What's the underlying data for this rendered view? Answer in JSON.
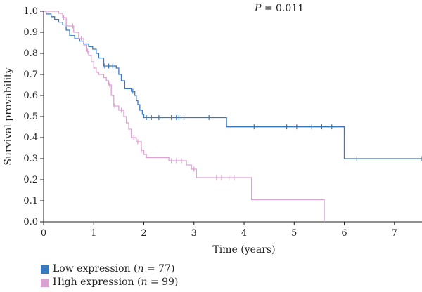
{
  "chart_data": {
    "type": "line",
    "title": "",
    "xlabel": "Time (years)",
    "ylabel": "Survival provability",
    "xlim": [
      0,
      7.55
    ],
    "ylim": [
      0,
      1.0
    ],
    "x_ticks": [
      0,
      1,
      2,
      3,
      4,
      5,
      6,
      7
    ],
    "y_ticks": [
      0.0,
      0.1,
      0.2,
      0.3,
      0.4,
      0.5,
      0.6,
      0.7,
      0.8,
      0.9,
      1.0
    ],
    "annotation": {
      "label": "P",
      "text": " = 0.011"
    },
    "legend_position": "bottom-left",
    "series": [
      {
        "color": "#3a78be",
        "legend": {
          "text": "Low expression (",
          "n_label": "n",
          "n_text": " = 77)"
        },
        "steps": [
          [
            0,
            1.0
          ],
          [
            0.05,
            0.987
          ],
          [
            0.15,
            0.974
          ],
          [
            0.22,
            0.961
          ],
          [
            0.3,
            0.948
          ],
          [
            0.38,
            0.935
          ],
          [
            0.45,
            0.91
          ],
          [
            0.52,
            0.884
          ],
          [
            0.62,
            0.87
          ],
          [
            0.72,
            0.858
          ],
          [
            0.8,
            0.845
          ],
          [
            0.9,
            0.832
          ],
          [
            0.98,
            0.82
          ],
          [
            1.05,
            0.8
          ],
          [
            1.1,
            0.778
          ],
          [
            1.2,
            0.74
          ],
          [
            1.45,
            0.73
          ],
          [
            1.5,
            0.7
          ],
          [
            1.55,
            0.67
          ],
          [
            1.62,
            0.632
          ],
          [
            1.75,
            0.62
          ],
          [
            1.82,
            0.6
          ],
          [
            1.85,
            0.575
          ],
          [
            1.88,
            0.556
          ],
          [
            1.92,
            0.53
          ],
          [
            1.97,
            0.51
          ],
          [
            2.0,
            0.495
          ],
          [
            3.65,
            0.451
          ],
          [
            6.0,
            0.3
          ],
          [
            7.55,
            0.3
          ]
        ],
        "censor": [
          1.22,
          1.3,
          1.38,
          1.78,
          2.05,
          2.15,
          2.3,
          2.55,
          2.65,
          2.7,
          2.8,
          3.3,
          4.2,
          4.85,
          5.05,
          5.35,
          5.55,
          5.75,
          6.25,
          7.55
        ]
      },
      {
        "color": "#d9a2d0",
        "legend": {
          "text": "High expression (",
          "n_label": "n",
          "n_text": " = 99)"
        },
        "steps": [
          [
            0,
            1.0
          ],
          [
            0.3,
            0.99
          ],
          [
            0.38,
            0.97
          ],
          [
            0.45,
            0.93
          ],
          [
            0.6,
            0.9
          ],
          [
            0.7,
            0.87
          ],
          [
            0.8,
            0.84
          ],
          [
            0.85,
            0.81
          ],
          [
            0.9,
            0.79
          ],
          [
            0.95,
            0.76
          ],
          [
            1.0,
            0.73
          ],
          [
            1.05,
            0.71
          ],
          [
            1.1,
            0.7
          ],
          [
            1.2,
            0.685
          ],
          [
            1.25,
            0.67
          ],
          [
            1.3,
            0.65
          ],
          [
            1.35,
            0.6
          ],
          [
            1.4,
            0.55
          ],
          [
            1.5,
            0.53
          ],
          [
            1.6,
            0.5
          ],
          [
            1.65,
            0.47
          ],
          [
            1.7,
            0.44
          ],
          [
            1.75,
            0.4
          ],
          [
            1.85,
            0.38
          ],
          [
            1.95,
            0.34
          ],
          [
            2.0,
            0.32
          ],
          [
            2.05,
            0.305
          ],
          [
            2.5,
            0.29
          ],
          [
            2.85,
            0.27
          ],
          [
            2.95,
            0.25
          ],
          [
            3.05,
            0.21
          ],
          [
            4.15,
            0.105
          ],
          [
            5.6,
            0.0
          ]
        ],
        "censor": [
          0.4,
          0.58,
          0.75,
          0.88,
          1.32,
          1.42,
          1.55,
          1.8,
          1.88,
          1.95,
          2.55,
          2.65,
          2.75,
          3.0,
          3.45,
          3.55,
          3.7,
          3.8
        ]
      }
    ]
  }
}
